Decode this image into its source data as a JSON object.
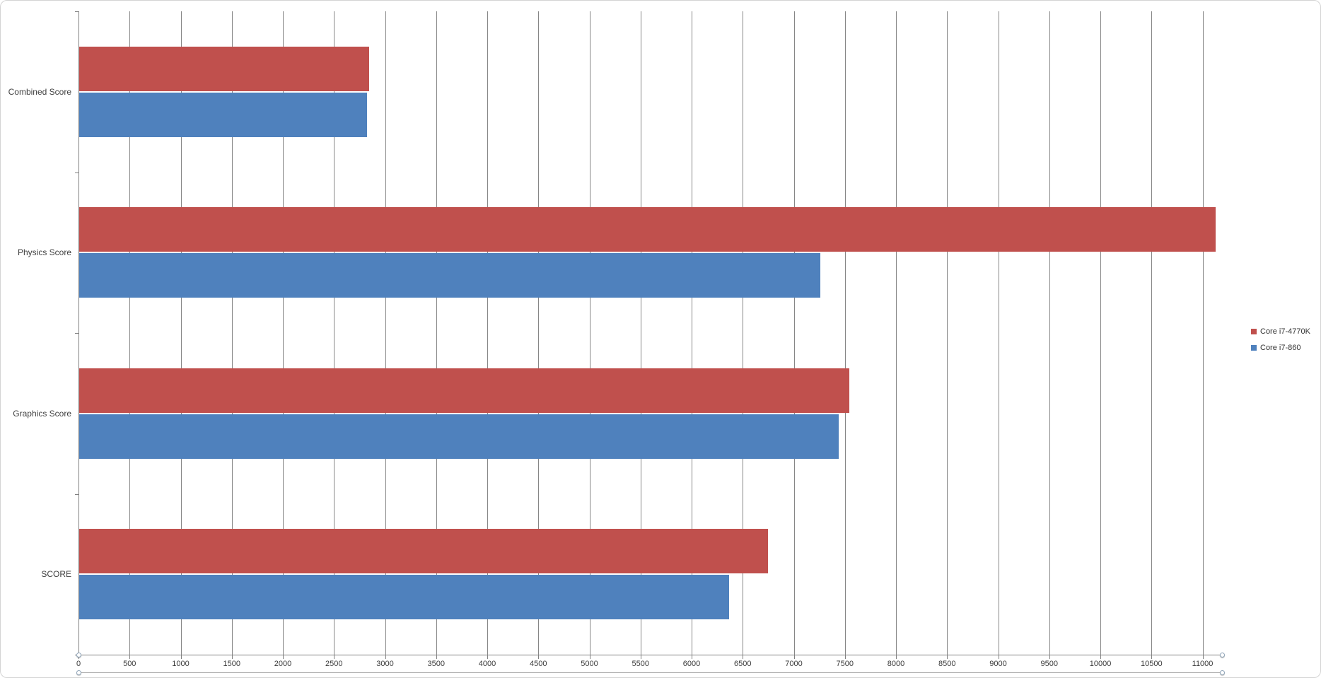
{
  "chart_data": {
    "type": "bar",
    "orientation": "horizontal",
    "title": "",
    "categories": [
      "Combined Score",
      "Physics Score",
      "Graphics Score",
      "SCORE"
    ],
    "series": [
      {
        "name": "Core i7-4770K",
        "color": "#C0504D",
        "values": [
          2845,
          11130,
          7540,
          6750
        ]
      },
      {
        "name": "Core i7-860",
        "color": "#4F81BD",
        "values": [
          2825,
          7260,
          7440,
          6365
        ]
      }
    ],
    "x_axis": {
      "min": 0,
      "max": 11190,
      "tick_interval": 500,
      "tick_labels": [
        "0",
        "500",
        "1000",
        "1500",
        "2000",
        "2500",
        "3000",
        "3500",
        "4000",
        "4500",
        "5000",
        "5500",
        "6000",
        "6500",
        "7000",
        "7500",
        "8000",
        "8500",
        "9000",
        "9500",
        "10000",
        "10500",
        "11000"
      ]
    },
    "legend": {
      "position": "right"
    },
    "gridlines": true
  },
  "colors": {
    "series_red": "#C0504D",
    "series_blue": "#4F81BD",
    "gridline": "#868686",
    "axis_line": "#808080",
    "text": "#3f3f3f",
    "chart_border": "#d4d4d4"
  }
}
